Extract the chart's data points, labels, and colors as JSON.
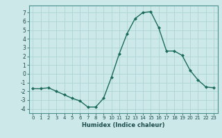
{
  "x": [
    0,
    1,
    2,
    3,
    4,
    5,
    6,
    7,
    8,
    9,
    10,
    11,
    12,
    13,
    14,
    15,
    16,
    17,
    18,
    19,
    20,
    21,
    22,
    23
  ],
  "y": [
    -1.7,
    -1.7,
    -1.6,
    -2.0,
    -2.4,
    -2.8,
    -3.1,
    -3.8,
    -3.8,
    -2.8,
    -0.4,
    2.3,
    4.6,
    6.3,
    7.0,
    7.1,
    5.3,
    2.6,
    2.6,
    2.1,
    0.4,
    -0.7,
    -1.5,
    -1.6
  ],
  "xlabel": "Humidex (Indice chaleur)",
  "ylim": [
    -4.5,
    7.8
  ],
  "xlim": [
    -0.5,
    23.5
  ],
  "bg_color": "#cce8e8",
  "grid_color": "#aed4d4",
  "line_color": "#1a6b5a",
  "marker_color": "#1a6b5a",
  "yticks": [
    -4,
    -3,
    -2,
    -1,
    0,
    1,
    2,
    3,
    4,
    5,
    6,
    7
  ],
  "xticks": [
    0,
    1,
    2,
    3,
    4,
    5,
    6,
    7,
    8,
    9,
    10,
    11,
    12,
    13,
    14,
    15,
    16,
    17,
    18,
    19,
    20,
    21,
    22,
    23
  ],
  "xtick_labels": [
    "0",
    "1",
    "2",
    "3",
    "4",
    "5",
    "6",
    "7",
    "8",
    "9",
    "10",
    "11",
    "12",
    "13",
    "14",
    "15",
    "16",
    "17",
    "18",
    "19",
    "20",
    "21",
    "22",
    "23"
  ]
}
